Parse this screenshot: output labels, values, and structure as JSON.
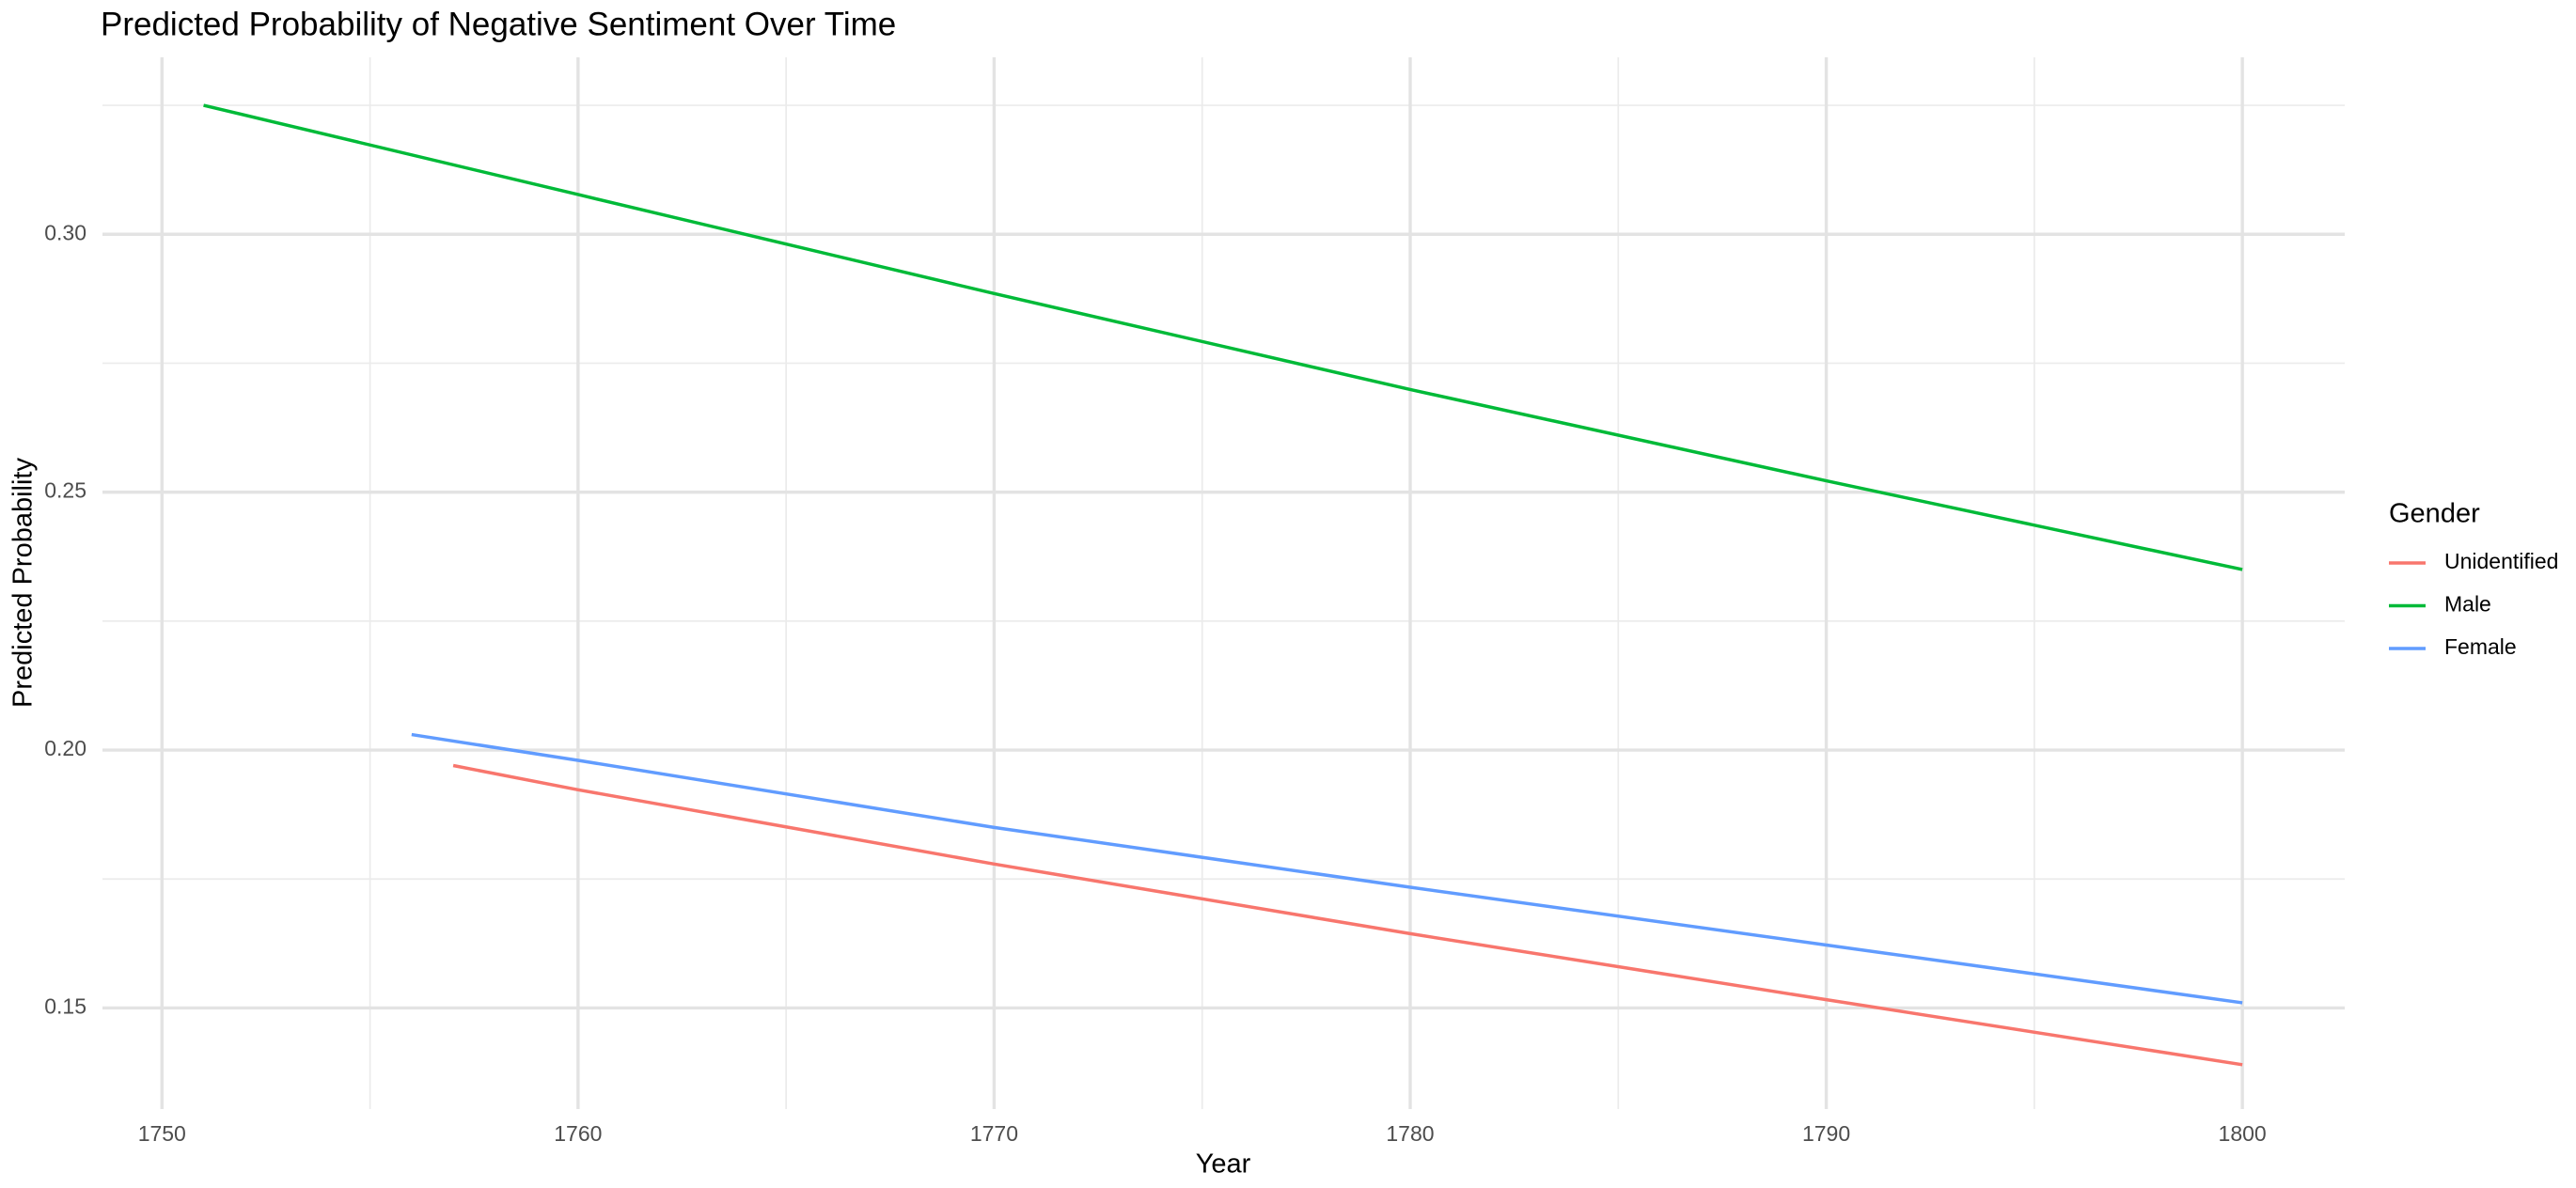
{
  "chart_data": {
    "type": "line",
    "title": "Predicted Probability of Negative Sentiment Over Time",
    "x_label": "Year",
    "y_label": "Predicted Probability",
    "legend_title": "Gender",
    "legend_position": "right",
    "grid": true,
    "xlim": [
      1748.57,
      1802.46
    ],
    "ylim": [
      0.1304,
      0.3343
    ],
    "xticks": [
      1750,
      1760,
      1770,
      1780,
      1790,
      1800
    ],
    "yticks": [
      0.15,
      {
        "value": 0.2,
        "label": "0.20"
      },
      0.25,
      {
        "value": 0.3,
        "label": "0.30"
      }
    ],
    "x_minor_breaks": [
      1755,
      1765,
      1775,
      1785,
      1795
    ],
    "y_minor_breaks": [
      0.175,
      0.225,
      0.275,
      0.325
    ],
    "series": [
      {
        "name": "Unidentified",
        "color": "#f8766d",
        "x": [
          1757,
          1760,
          1770,
          1780,
          1790,
          1800
        ],
        "values": [
          0.197,
          0.1923,
          0.1779,
          0.1644,
          0.1516,
          0.139
        ]
      },
      {
        "name": "Male",
        "color": "#00ba38",
        "x": [
          1751,
          1760,
          1770,
          1780,
          1790,
          1800
        ],
        "values": [
          0.325,
          0.3077,
          0.2885,
          0.2699,
          0.2522,
          0.235
        ]
      },
      {
        "name": "Female",
        "color": "#619cff",
        "x": [
          1756,
          1760,
          1770,
          1780,
          1790,
          1800
        ],
        "values": [
          0.203,
          0.198,
          0.185,
          0.1734,
          0.1622,
          0.151
        ]
      }
    ]
  }
}
